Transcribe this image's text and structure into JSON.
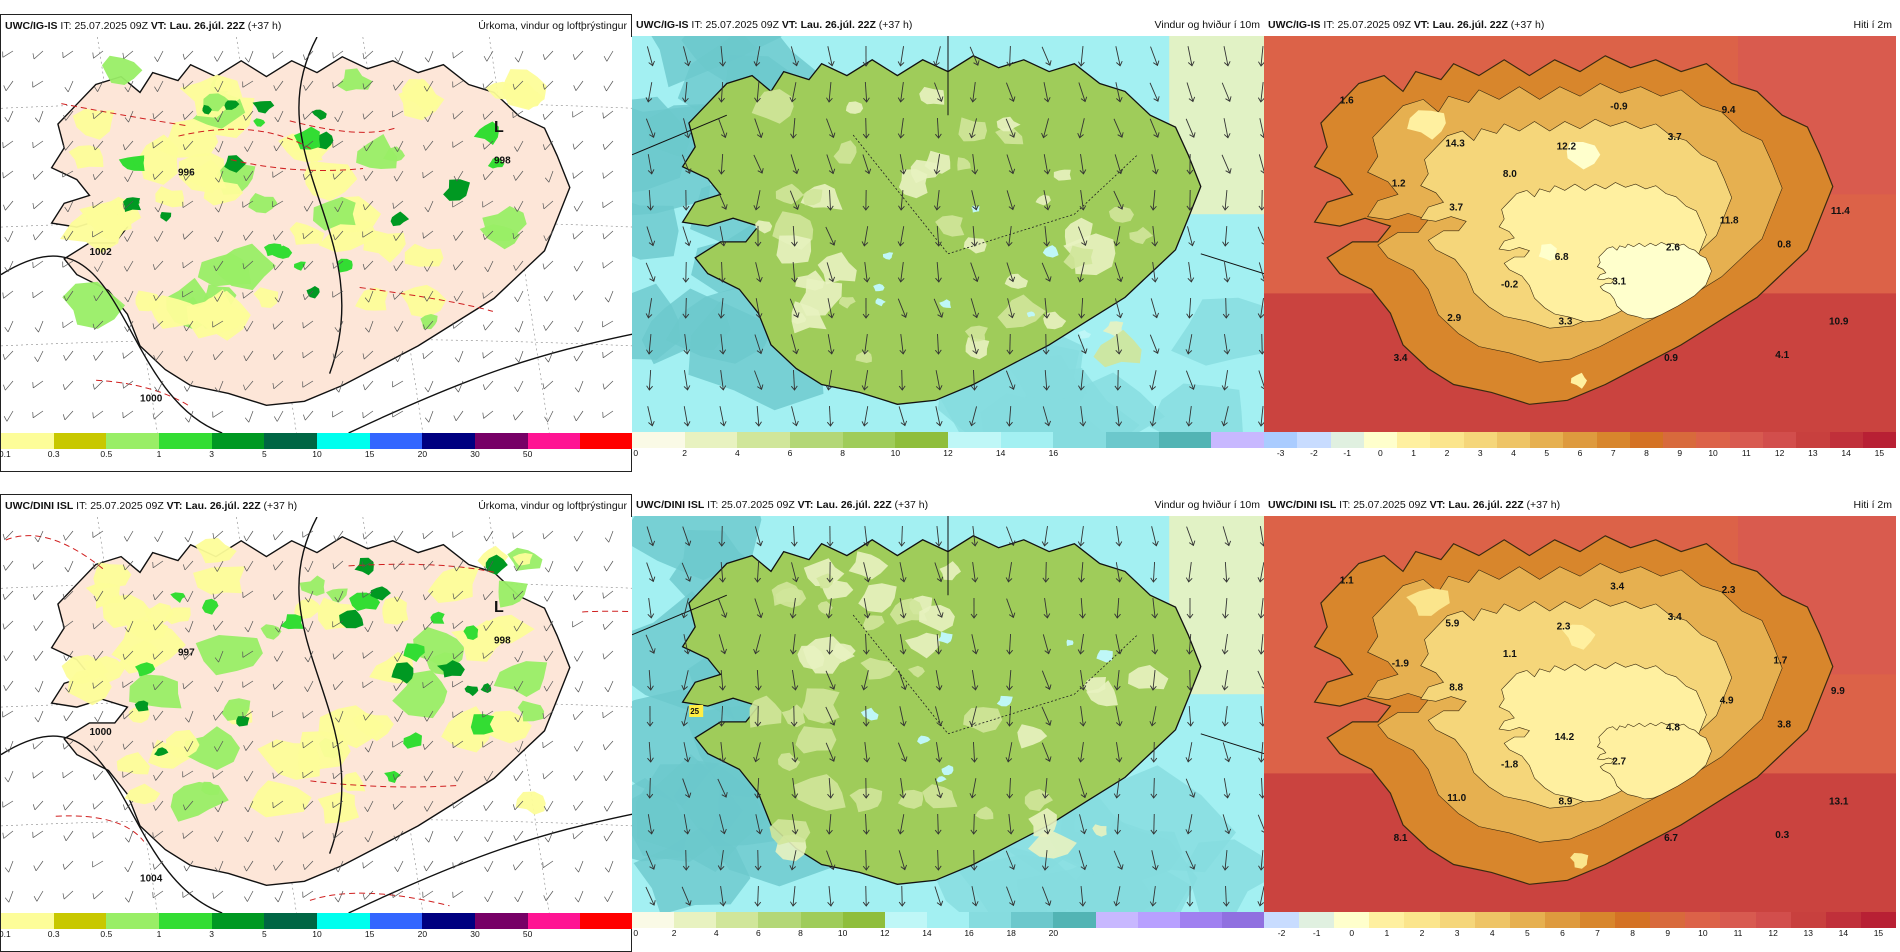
{
  "panels": [
    {
      "id": "p1",
      "row": 0,
      "col": 0,
      "type": "precip",
      "framed": true,
      "model": "UWC/IG-IS",
      "it_label": "IT:",
      "it_value": "25.07.2025 09Z",
      "vt_label": "VT:",
      "vt_value": "Lau. 26.júl. 22Z",
      "lead": "(+37 h)",
      "field": "Úrkoma, vindur og loftþrýstingur",
      "colorbar": {
        "colors": [
          "#fdfd99",
          "#c8c800",
          "#99ee66",
          "#33dd33",
          "#009922",
          "#006644",
          "#00ffee",
          "#3366ff",
          "#000080",
          "#770066",
          "#ff1493",
          "#ff0000"
        ],
        "ticks": [
          "0.1",
          "0.3",
          "0.5",
          "1",
          "3",
          "5",
          "10",
          "15",
          "20",
          "30",
          "50"
        ]
      },
      "pressure_labels": [
        "996",
        "998",
        "1002",
        "1000"
      ],
      "low_marker": "L"
    },
    {
      "id": "p2",
      "row": 0,
      "col": 1,
      "type": "wind",
      "framed": false,
      "model": "UWC/IG-IS",
      "it_label": "IT:",
      "it_value": "25.07.2025 09Z",
      "vt_label": "VT:",
      "vt_value": "Lau. 26.júl. 22Z",
      "lead": "(+37 h)",
      "field": "Vindur og hviður í 10m",
      "colorbar": {
        "colors": [
          "#fafae6",
          "#e8f2c0",
          "#d0e69a",
          "#b3d777",
          "#9fcc5a",
          "#8fbe3c",
          "#bff7f7",
          "#a3f0f2",
          "#86dcdf",
          "#6cc8cc",
          "#52b4b4",
          "#c8b8ff"
        ],
        "ticks": [
          "0",
          "2",
          "4",
          "6",
          "8",
          "10",
          "12",
          "14",
          "16"
        ]
      }
    },
    {
      "id": "p3",
      "row": 0,
      "col": 2,
      "type": "temp",
      "framed": false,
      "model": "UWC/IG-IS",
      "it_label": "IT:",
      "it_value": "25.07.2025 09Z",
      "vt_label": "VT:",
      "vt_value": "Lau. 26.júl. 22Z",
      "lead": "(+37 h)",
      "field": "Hiti í 2m",
      "colorbar": {
        "colors": [
          "#aaccff",
          "#c8dcff",
          "#e0f0e0",
          "#ffffcc",
          "#fff0a0",
          "#fbe58c",
          "#f5d67a",
          "#eec466",
          "#e6b050",
          "#de9a3e",
          "#d8862c",
          "#d47224",
          "#d86a3c",
          "#dc6248",
          "#d85a50",
          "#d24e4c",
          "#c8403e",
          "#c0303a",
          "#b82034"
        ],
        "ticks": [
          "-3",
          "-2",
          "-1",
          "0",
          "1",
          "2",
          "3",
          "4",
          "5",
          "6",
          "7",
          "8",
          "9",
          "10",
          "11",
          "12",
          "13",
          "14",
          "15"
        ],
        "values": [
          "1.6",
          "3.7",
          "3.3",
          "3.7",
          "0.8",
          "3.4",
          "8.0",
          "3.1",
          "9.4",
          "11.4",
          "2.9",
          "12.2",
          "2.6",
          "4.1",
          "1.2",
          "-0.2",
          "-0.9",
          "11.8",
          "10.9",
          "14.3",
          "6.8",
          "0.9"
        ]
      }
    },
    {
      "id": "p4",
      "row": 1,
      "col": 0,
      "type": "precip",
      "framed": true,
      "model": "UWC/DINI ISL",
      "it_label": "IT:",
      "it_value": "25.07.2025 09Z",
      "vt_label": "VT:",
      "vt_value": "Lau. 26.júl. 22Z",
      "lead": "(+37 h)",
      "field": "Úrkoma, vindur og loftþrýstingur",
      "colorbar": {
        "colors": [
          "#fdfd99",
          "#c8c800",
          "#99ee66",
          "#33dd33",
          "#009922",
          "#006644",
          "#00ffee",
          "#3366ff",
          "#000080",
          "#770066",
          "#ff1493",
          "#ff0000"
        ],
        "ticks": [
          "0.1",
          "0.3",
          "0.5",
          "1",
          "3",
          "5",
          "10",
          "15",
          "20",
          "30",
          "50"
        ]
      },
      "pressure_labels": [
        "997",
        "998",
        "1000",
        "1004"
      ],
      "low_marker": "L"
    },
    {
      "id": "p5",
      "row": 1,
      "col": 1,
      "type": "wind",
      "framed": false,
      "model": "UWC/DINI ISL",
      "it_label": "IT:",
      "it_value": "25.07.2025 09Z",
      "vt_label": "VT:",
      "vt_value": "Lau. 26.júl. 22Z",
      "lead": "(+37 h)",
      "field": "Vindur og hviður í 10m",
      "colorbar": {
        "colors": [
          "#fafae6",
          "#e8f2c0",
          "#d0e69a",
          "#b3d777",
          "#9fcc5a",
          "#8fbe3c",
          "#bff7f7",
          "#a3f0f2",
          "#86dcdf",
          "#6cc8cc",
          "#52b4b4",
          "#c8b8ff",
          "#b8a0ff",
          "#a080f0",
          "#9070e0"
        ],
        "ticks": [
          "0",
          "2",
          "4",
          "6",
          "8",
          "10",
          "12",
          "14",
          "16",
          "18",
          "20"
        ]
      },
      "gust_label": "25"
    },
    {
      "id": "p6",
      "row": 1,
      "col": 2,
      "type": "temp",
      "framed": false,
      "model": "UWC/DINI ISL",
      "it_label": "IT:",
      "it_value": "25.07.2025 09Z",
      "vt_label": "VT:",
      "vt_value": "Lau. 26.júl. 22Z",
      "lead": "(+37 h)",
      "field": "Hiti í 2m",
      "colorbar": {
        "colors": [
          "#c8dcff",
          "#e0f0e0",
          "#ffffcc",
          "#fff0a0",
          "#fbe58c",
          "#f5d67a",
          "#eec466",
          "#e6b050",
          "#de9a3e",
          "#d8862c",
          "#d47224",
          "#d86a3c",
          "#dc6248",
          "#d85a50",
          "#d24e4c",
          "#c8403e",
          "#c0303a",
          "#b82034"
        ],
        "ticks": [
          "-2",
          "-1",
          "0",
          "1",
          "2",
          "3",
          "4",
          "5",
          "6",
          "7",
          "8",
          "9",
          "10",
          "11",
          "12",
          "13",
          "14",
          "15"
        ],
        "values": [
          "1.1",
          "8.8",
          "8.9",
          "3.4",
          "3.8",
          "8.1",
          "1.1",
          "2.7",
          "2.3",
          "9.9",
          "11.0",
          "2.3",
          "4.8",
          "0.3",
          "-1.9",
          "-1.8",
          "3.4",
          "4.9",
          "13.1",
          "5.9",
          "14.2",
          "6.7",
          "1.7"
        ]
      }
    }
  ]
}
